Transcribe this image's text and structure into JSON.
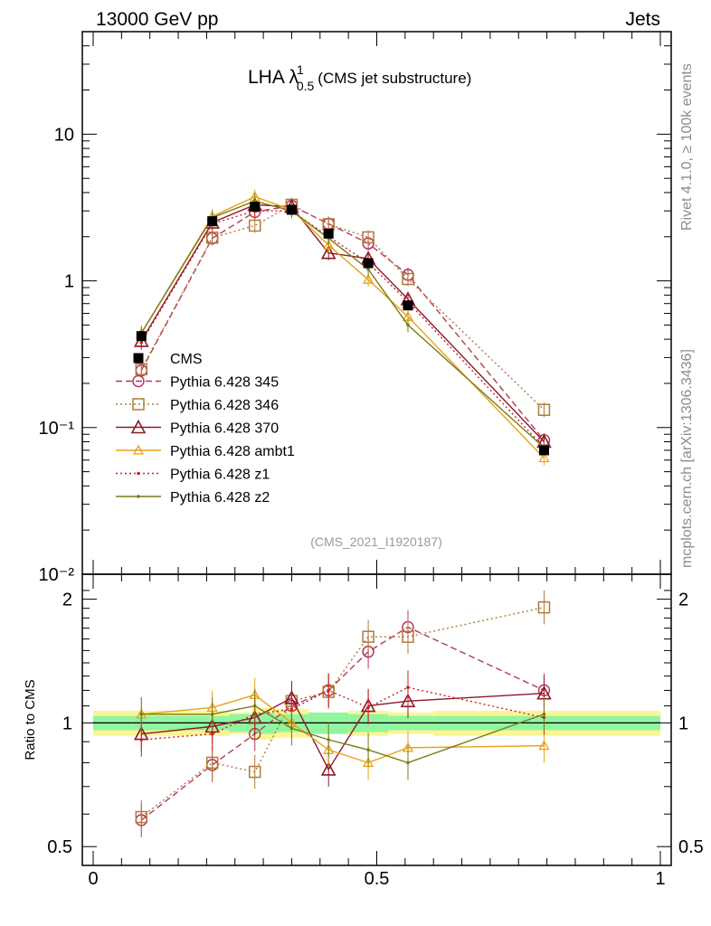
{
  "header": {
    "left": "13000 GeV pp",
    "right": "Jets"
  },
  "side_text": {
    "rivet": "Rivet 4.1.0, ≥ 100k events",
    "mcplots": "mcplots.cern.ch [arXiv:1306.3436]"
  },
  "chart_data": {
    "type": "line",
    "title_main": "LHA λ",
    "title_sup": "1",
    "title_sub": "0.5",
    "title_paren": "(CMS jet substructure)",
    "analysis_id": "(CMS_2021_I1920187)",
    "x": [
      0.085,
      0.21,
      0.285,
      0.35,
      0.415,
      0.485,
      0.555,
      0.795
    ],
    "xlim": [
      0,
      1
    ],
    "ylim": [
      0.01,
      50
    ],
    "yscale": "log",
    "x_ticks": [
      0,
      0.5,
      1
    ],
    "x_tick_labels": [
      "0",
      "0.5",
      "1"
    ],
    "y_ticks": [
      0.01,
      0.1,
      1,
      10
    ],
    "y_tick_labels": [
      "10⁻²",
      "10⁻¹",
      "1",
      "10"
    ],
    "ratio_ylabel": "Ratio to CMS",
    "ratio_ylim": [
      0.45,
      2.3
    ],
    "ratio_ticks": [
      0.5,
      1,
      2
    ],
    "ratio_tick_labels": [
      "0.5",
      "1",
      "2"
    ],
    "data_series": {
      "name": "CMS",
      "color": "#000000",
      "values": [
        0.42,
        2.55,
        3.2,
        3.05,
        2.1,
        1.32,
        0.68,
        0.07
      ]
    },
    "band_edges": [
      0.0,
      0.07,
      0.24,
      0.28,
      0.32,
      0.38,
      0.45,
      0.52,
      0.6,
      1.0
    ],
    "band_inner": [
      0.04,
      0.04,
      0.05,
      0.06,
      0.05,
      0.06,
      0.05,
      0.04,
      0.04
    ],
    "band_outer": [
      0.07,
      0.07,
      0.06,
      0.09,
      0.08,
      0.06,
      0.07,
      0.06,
      0.07
    ],
    "series": [
      {
        "name": "Pythia 6.428 345",
        "color": "#b33a5c",
        "dash": "7,4",
        "marker": "circle",
        "values": [
          0.245,
          1.95,
          2.95,
          3.25,
          2.45,
          1.8,
          1.1,
          0.082
        ],
        "ratio": [
          0.58,
          0.79,
          0.94,
          1.1,
          1.2,
          1.49,
          1.71,
          1.2
        ]
      },
      {
        "name": "Pythia 6.428 346",
        "color": "#b07a3a",
        "dash": "2,3",
        "marker": "square",
        "values": [
          0.25,
          1.97,
          2.38,
          3.3,
          2.43,
          1.98,
          1.03,
          0.132
        ],
        "ratio": [
          0.59,
          0.8,
          0.76,
          1.13,
          1.19,
          1.62,
          1.62,
          1.91
        ]
      },
      {
        "name": "Pythia 6.428 370",
        "color": "#8b1a2b",
        "dash": "",
        "marker": "triangle",
        "values": [
          0.39,
          2.5,
          3.3,
          3.2,
          1.55,
          1.42,
          0.75,
          0.08
        ],
        "ratio": [
          0.94,
          0.98,
          1.03,
          1.15,
          0.77,
          1.1,
          1.13,
          1.18
        ]
      },
      {
        "name": "Pythia 6.428 ambt1",
        "color": "#e8a317",
        "dash": "",
        "marker": "triangle-open",
        "values": [
          0.44,
          2.75,
          3.75,
          3.05,
          1.75,
          1.02,
          0.57,
          0.062
        ],
        "ratio": [
          1.05,
          1.09,
          1.17,
          1.0,
          0.86,
          0.8,
          0.87,
          0.88
        ]
      },
      {
        "name": "Pythia 6.428 z1",
        "color": "#cc2222",
        "dash": "2,3",
        "marker": "dot",
        "values": [
          0.38,
          2.45,
          3.0,
          3.0,
          2.0,
          1.33,
          0.72,
          0.073
        ],
        "ratio": [
          0.91,
          0.94,
          1.05,
          1.08,
          1.2,
          1.09,
          1.22,
          1.03
        ]
      },
      {
        "name": "Pythia 6.428 z2",
        "color": "#7a7a1a",
        "dash": "",
        "marker": "dot",
        "values": [
          0.44,
          2.7,
          3.5,
          3.0,
          1.95,
          1.2,
          0.5,
          0.073
        ],
        "ratio": [
          1.05,
          1.05,
          1.1,
          0.97,
          0.91,
          0.86,
          0.8,
          1.05
        ]
      }
    ]
  }
}
